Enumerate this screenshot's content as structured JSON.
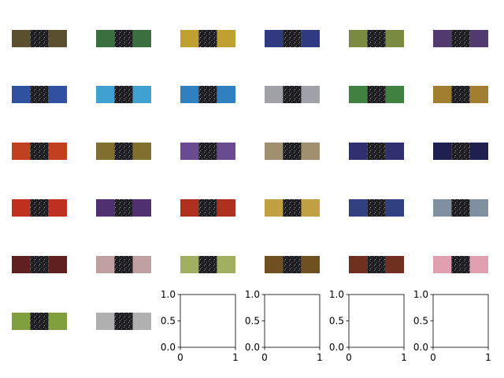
{
  "images": [
    {
      "color": "#5a5030"
    },
    {
      "color": "#3a7040"
    },
    {
      "color": "#c0a030"
    },
    {
      "color": "#303a80"
    },
    {
      "color": "#7a8a40"
    },
    {
      "color": "#503a70"
    },
    {
      "color": "#3050a0"
    },
    {
      "color": "#40a0d0"
    },
    {
      "color": "#3080c0"
    },
    {
      "color": "#a0a0a8"
    },
    {
      "color": "#408040"
    },
    {
      "color": "#a08030"
    },
    {
      "color": "#c04020"
    },
    {
      "color": "#807030"
    },
    {
      "color": "#6a4a90"
    },
    {
      "color": "#a09070"
    },
    {
      "color": "#303070"
    },
    {
      "color": "#202050"
    },
    {
      "color": "#c03020"
    },
    {
      "color": "#503070"
    },
    {
      "color": "#b03020"
    },
    {
      "color": "#c0a040"
    },
    {
      "color": "#304080"
    },
    {
      "color": "#8090a0"
    },
    {
      "color": "#602020"
    },
    {
      "color": "#c0a0a0"
    },
    {
      "color": "#a0b060"
    },
    {
      "color": "#705020"
    },
    {
      "color": "#703020"
    },
    {
      "color": "#e0a0b0"
    },
    {
      "color": "#80a040"
    },
    {
      "color": "#b0b0b0"
    }
  ],
  "empty_axes": [
    {
      "xlim": [
        0,
        1
      ],
      "ylim": [
        0,
        1
      ],
      "xticks": [
        0,
        1
      ],
      "yticks": [
        {
          "value": 0,
          "label": "0.0"
        },
        0.5,
        {
          "value": 1,
          "label": "1.0"
        }
      ]
    },
    {
      "xlim": [
        0,
        1
      ],
      "ylim": [
        0,
        1
      ],
      "xticks": [
        0,
        1
      ],
      "yticks": [
        {
          "value": 0,
          "label": "0.0"
        },
        0.5,
        {
          "value": 1,
          "label": "1.0"
        }
      ]
    },
    {
      "xlim": [
        0,
        1
      ],
      "ylim": [
        0,
        1
      ],
      "xticks": [
        0,
        1
      ],
      "yticks": [
        {
          "value": 0,
          "label": "0.0"
        },
        0.5,
        {
          "value": 1,
          "label": "1.0"
        }
      ]
    },
    {
      "xlim": [
        0,
        1
      ],
      "ylim": [
        0,
        1
      ],
      "xticks": [
        0,
        1
      ],
      "yticks": [
        {
          "value": 0,
          "label": "0.0"
        },
        0.5,
        {
          "value": 1,
          "label": "1.0"
        }
      ]
    }
  ]
}
